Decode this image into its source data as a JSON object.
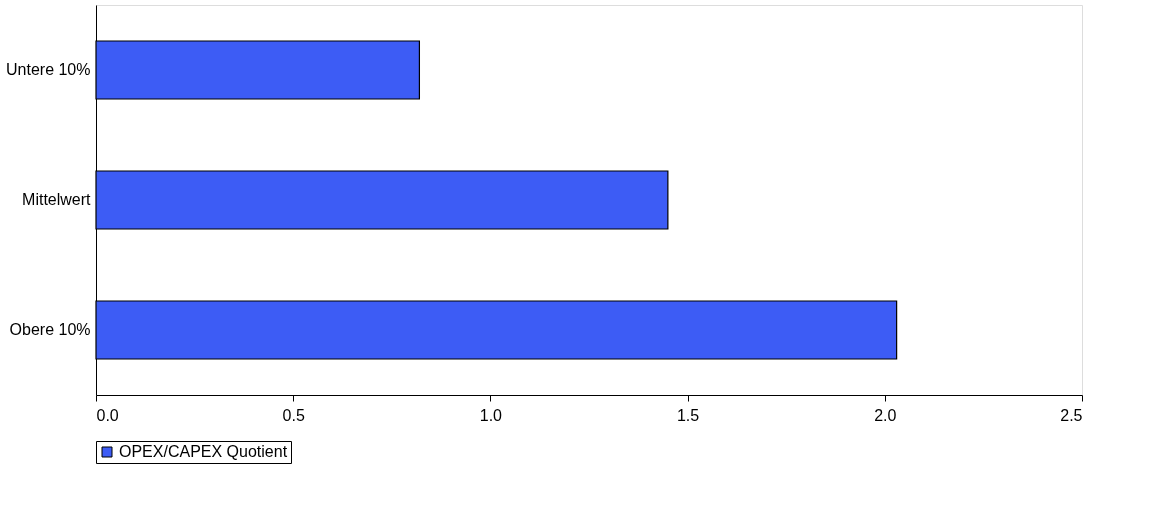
{
  "chart_data": {
    "type": "bar",
    "orientation": "horizontal",
    "categories": [
      "Untere 10%",
      "Mittelwert",
      "Obere 10%"
    ],
    "series": [
      {
        "name": "OPEX/CAPEX Quotient",
        "color": "#3d5cf5",
        "values": [
          0.82,
          1.45,
          2.03
        ]
      }
    ],
    "xlim": [
      0,
      2.5
    ],
    "xticks": [
      {
        "value": 0,
        "label": "0.0"
      },
      {
        "value": 0.5,
        "label": "0.5"
      },
      {
        "value": 1,
        "label": "1.0"
      },
      {
        "value": 1.5,
        "label": "1.5"
      },
      {
        "value": 2,
        "label": "2.0"
      },
      {
        "value": 2.5,
        "label": "2.5"
      }
    ],
    "grid": false,
    "legend": "bottom"
  }
}
